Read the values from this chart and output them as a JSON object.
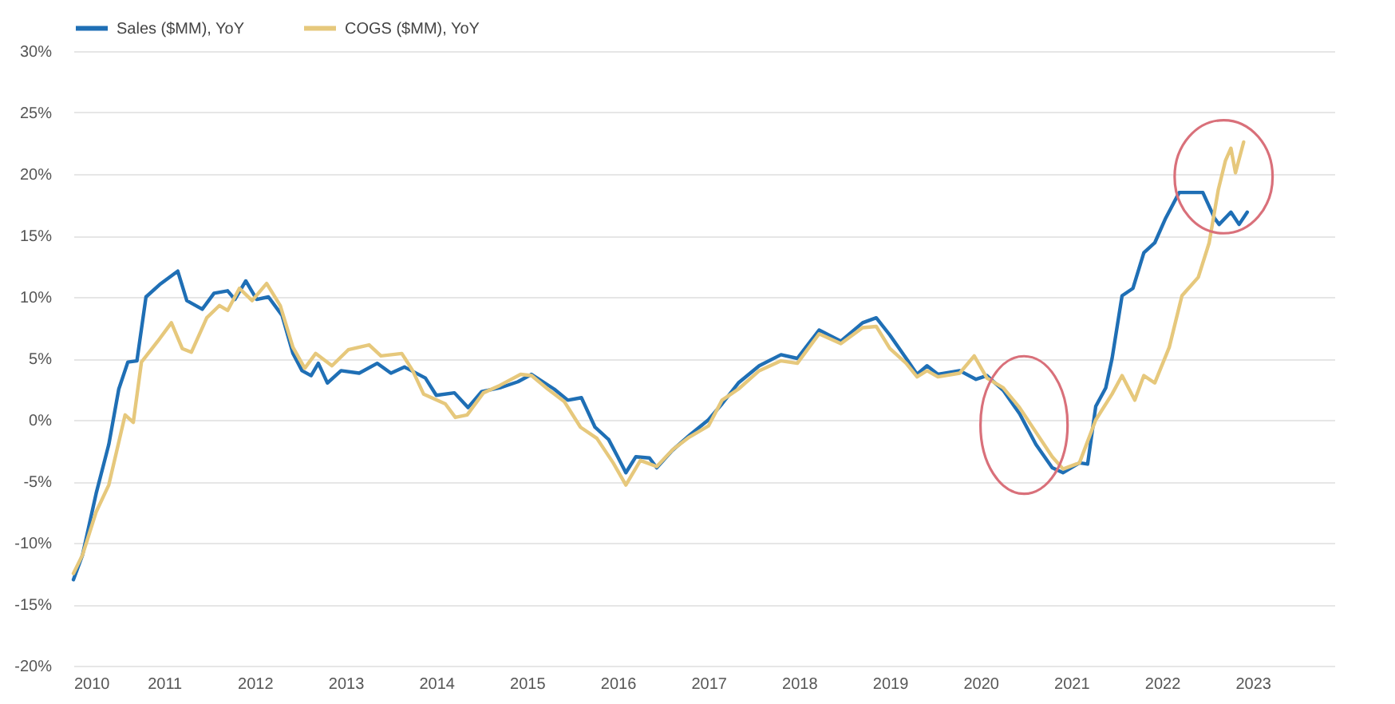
{
  "chart_data": {
    "type": "line",
    "legend": "top",
    "grid": "y",
    "xlim": [
      2010,
      2023.9
    ],
    "xticks": [
      2010,
      2011,
      2012,
      2013,
      2014,
      2015,
      2016,
      2017,
      2018,
      2019,
      2020,
      2021,
      2022,
      2023
    ],
    "ylim": [
      -20,
      30
    ],
    "yticks": [
      {
        "value": -20,
        "label": "-20%"
      },
      {
        "value": -15,
        "label": "-15%"
      },
      {
        "value": -10,
        "label": "-10%"
      },
      {
        "value": -5,
        "label": "-5%"
      },
      {
        "value": 0,
        "label": "0%"
      },
      {
        "value": 5,
        "label": "5%"
      },
      {
        "value": 10,
        "label": "10%"
      },
      {
        "value": 15,
        "label": "15%"
      },
      {
        "value": 20,
        "label": "20%"
      },
      {
        "value": 25,
        "label": "25%"
      },
      {
        "value": 30,
        "label": "30%"
      }
    ],
    "series": [
      {
        "name": "Sales ($MM), YoY",
        "color": "#1f6fb5",
        "x": [
          2010.0,
          2010.1,
          2010.25,
          2010.39,
          2010.5,
          2010.6,
          2010.7,
          2010.8,
          2010.95,
          2011.15,
          2011.25,
          2011.42,
          2011.55,
          2011.7,
          2011.78,
          2011.9,
          2012.02,
          2012.15,
          2012.3,
          2012.42,
          2012.52,
          2012.62,
          2012.7,
          2012.8,
          2012.95,
          2013.15,
          2013.35,
          2013.5,
          2013.65,
          2013.88,
          2014.0,
          2014.2,
          2014.35,
          2014.5,
          2014.7,
          2014.9,
          2015.05,
          2015.3,
          2015.45,
          2015.6,
          2015.75,
          2015.9,
          2016.0,
          2016.09,
          2016.2,
          2016.35,
          2016.43,
          2016.6,
          2016.8,
          2017.0,
          2017.15,
          2017.33,
          2017.56,
          2017.8,
          2017.98,
          2018.22,
          2018.46,
          2018.7,
          2018.85,
          2019.0,
          2019.18,
          2019.3,
          2019.41,
          2019.53,
          2019.77,
          2019.95,
          2020.07,
          2020.25,
          2020.43,
          2020.61,
          2020.79,
          2020.91,
          2021.09,
          2021.18,
          2021.27,
          2021.38,
          2021.45,
          2021.56,
          2021.68,
          2021.8,
          2021.92,
          2022.04,
          2022.19,
          2022.45,
          2022.58,
          2022.63,
          2022.76,
          2022.85,
          2022.94
        ],
        "values": [
          -13,
          -11,
          -6,
          -2,
          2.5,
          4.7,
          4.8,
          10,
          11,
          12.1,
          9.7,
          9,
          10.3,
          10.5,
          9.8,
          11.3,
          9.8,
          10,
          8.5,
          5.4,
          4,
          3.6,
          4.6,
          3,
          4,
          3.8,
          4.6,
          3.8,
          4.3,
          3.4,
          2,
          2.2,
          1,
          2.3,
          2.6,
          3.1,
          3.7,
          2.5,
          1.6,
          1.8,
          -0.6,
          -1.6,
          -3,
          -4.3,
          -3,
          -3.1,
          -3.9,
          -2.5,
          -1.2,
          0,
          1.3,
          3,
          4.4,
          5.3,
          5,
          7.3,
          6.4,
          7.9,
          8.3,
          6.9,
          5,
          3.7,
          4.4,
          3.7,
          4,
          3.3,
          3.6,
          2.4,
          0.5,
          -2,
          -3.9,
          -4.3,
          -3.5,
          -3.6,
          1.1,
          2.6,
          5,
          10.1,
          10.7,
          13.6,
          14.4,
          16.4,
          18.5,
          18.5,
          16.4,
          15.9,
          16.9,
          15.9,
          16.9
        ]
      },
      {
        "name": "COGS ($MM), YoY",
        "color": "#e6c87c",
        "x": [
          2010.0,
          2010.1,
          2010.25,
          2010.39,
          2010.57,
          2010.66,
          2010.75,
          2010.93,
          2011.08,
          2011.2,
          2011.3,
          2011.47,
          2011.61,
          2011.7,
          2011.83,
          2011.97,
          2012.13,
          2012.28,
          2012.42,
          2012.55,
          2012.67,
          2012.85,
          2013.03,
          2013.26,
          2013.39,
          2013.62,
          2013.74,
          2013.86,
          2014.1,
          2014.21,
          2014.34,
          2014.52,
          2014.7,
          2014.93,
          2015.05,
          2015.23,
          2015.41,
          2015.59,
          2015.77,
          2015.95,
          2016.09,
          2016.25,
          2016.43,
          2016.61,
          2016.79,
          2017.0,
          2017.15,
          2017.33,
          2017.56,
          2017.8,
          2017.98,
          2018.22,
          2018.46,
          2018.7,
          2018.85,
          2019.0,
          2019.18,
          2019.3,
          2019.41,
          2019.53,
          2019.77,
          2019.93,
          2020.07,
          2020.25,
          2020.43,
          2020.61,
          2020.79,
          2020.91,
          2021.09,
          2021.27,
          2021.45,
          2021.56,
          2021.7,
          2021.8,
          2021.92,
          2022.08,
          2022.22,
          2022.4,
          2022.52,
          2022.62,
          2022.7,
          2022.76,
          2022.81,
          2022.9
        ],
        "values": [
          -12.5,
          -11,
          -7.5,
          -5.3,
          0.4,
          -0.2,
          4.7,
          6.4,
          7.9,
          5.8,
          5.5,
          8.3,
          9.3,
          8.9,
          10.7,
          9.7,
          11.1,
          9.3,
          5.9,
          4.2,
          5.4,
          4.4,
          5.7,
          6.1,
          5.2,
          5.4,
          4,
          2.1,
          1.3,
          0.2,
          0.4,
          2.2,
          2.8,
          3.7,
          3.6,
          2.5,
          1.5,
          -0.6,
          -1.5,
          -3.5,
          -5.3,
          -3.3,
          -3.8,
          -2.4,
          -1.4,
          -0.5,
          1.6,
          2.5,
          4,
          4.8,
          4.6,
          7,
          6.2,
          7.5,
          7.6,
          5.8,
          4.6,
          3.5,
          4,
          3.5,
          3.8,
          5.2,
          3.4,
          2.6,
          1,
          -1,
          -3,
          -4,
          -3.5,
          0,
          2.1,
          3.6,
          1.6,
          3.6,
          3,
          5.9,
          10.1,
          11.6,
          14.4,
          18.7,
          21.1,
          22.1,
          20.1,
          22.6
        ]
      }
    ]
  }
}
